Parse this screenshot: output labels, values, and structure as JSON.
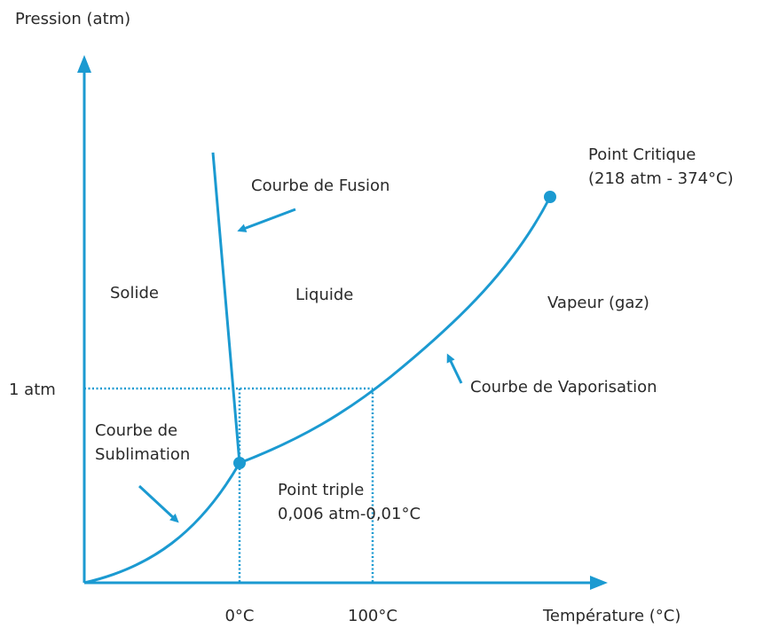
{
  "axes": {
    "y_label": "Pression (atm)",
    "x_label": "Température (°C)"
  },
  "ticks": {
    "y": [
      "1 atm"
    ],
    "x": [
      "0°C",
      "100°C"
    ]
  },
  "regions": [
    "Solide",
    "Liquide",
    "Vapeur (gaz)"
  ],
  "curves": {
    "fusion": "Courbe de Fusion",
    "vaporisation": "Courbe de Vaporisation",
    "sublimation": [
      "Courbe de",
      "Sublimation"
    ]
  },
  "points": {
    "triple": [
      "Point triple",
      "0,006 atm-0,01°C"
    ],
    "critical": [
      "Point Critique",
      "(218 atm - 374°C)"
    ]
  }
}
